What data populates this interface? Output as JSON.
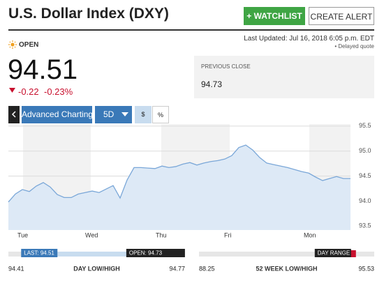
{
  "header": {
    "title": "U.S. Dollar Index (DXY)",
    "watchlist": "+ WATCHLIST",
    "alert": "CREATE ALERT",
    "last_updated": "Last Updated: Jul 16, 2018 6:05 p.m. EDT",
    "delayed": "• Delayed quote"
  },
  "quote": {
    "status": "OPEN",
    "price": "94.51",
    "change": "-0.22",
    "change_percent": "-0.23%"
  },
  "previous_close": {
    "label": "PREVIOUS CLOSE",
    "value": "94.73"
  },
  "toolbar": {
    "advanced": "Advanced Charting",
    "range": "5D",
    "dollar": "$",
    "percent": "%"
  },
  "chart_data": {
    "type": "area",
    "color": "#7aa7d8",
    "fill": "#dde9f6",
    "values": [
      93.98,
      94.14,
      94.23,
      94.19,
      94.3,
      94.37,
      94.28,
      94.13,
      94.07,
      94.07,
      94.14,
      94.17,
      94.2,
      94.17,
      94.24,
      94.31,
      94.06,
      94.42,
      94.67,
      94.67,
      94.66,
      94.65,
      94.7,
      94.67,
      94.69,
      94.74,
      94.77,
      94.72,
      94.76,
      94.79,
      94.81,
      94.84,
      94.91,
      95.07,
      95.12,
      95.02,
      94.87,
      94.76,
      94.73,
      94.7,
      94.67,
      94.63,
      94.59,
      94.56,
      94.48,
      94.41,
      94.45,
      94.49,
      94.45,
      94.45
    ],
    "xlim": [
      0,
      49
    ],
    "xticks": [
      {
        "value": 2.1,
        "label": "Tue"
      },
      {
        "value": 11.8,
        "label": "Wed"
      },
      {
        "value": 21.9,
        "label": "Thu"
      },
      {
        "value": 31.7,
        "label": "Fri"
      },
      {
        "value": 43.1,
        "label": "Mon"
      }
    ],
    "ylim": [
      93.42,
      95.54
    ],
    "yticks": [
      93.5,
      {
        "value": 94,
        "label": "94.0"
      },
      94.5,
      {
        "value": 95,
        "label": "95.0"
      },
      95.5
    ],
    "grid": true
  },
  "ranges": [
    {
      "name": "DAY LOW/HIGH",
      "low": 94.41,
      "high": 94.77,
      "markers": [
        {
          "label": "LAST: 94.51",
          "value": 94.51
        },
        {
          "label": "OPEN: 94.73",
          "value": 94.73
        }
      ]
    },
    {
      "name": "52 WEEK LOW/HIGH",
      "low": 88.25,
      "high": 95.53,
      "tag": "DAY RANGE"
    }
  ]
}
